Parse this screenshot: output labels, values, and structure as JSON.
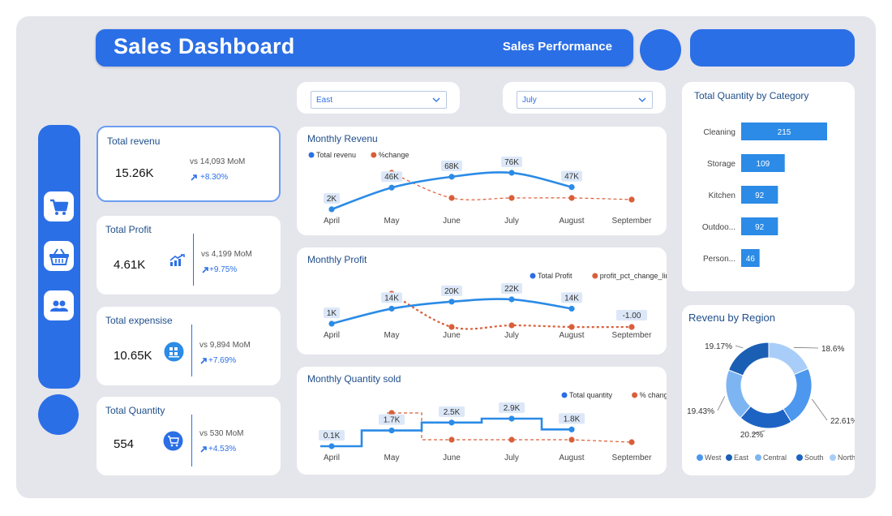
{
  "header": {
    "title": "Sales Dashboard",
    "subtitle": "Sales Performance"
  },
  "sidebar": {
    "icons": [
      "cart-icon",
      "basket-icon",
      "users-icon"
    ]
  },
  "filters": {
    "region": "East",
    "month": "July"
  },
  "kpis": {
    "revenue": {
      "label": "Total revenu",
      "value": "15.26K",
      "vs": "vs 14,093 MoM",
      "pct": "+8.30%"
    },
    "profit": {
      "label": "Total Profit",
      "value": "4.61K",
      "vs": "vs 4,199 MoM",
      "pct": "+9.75%"
    },
    "expense": {
      "label": "Total expensise",
      "value": "10.65K",
      "vs": "vs 9,894 MoM",
      "pct": "+7.69%"
    },
    "quantity": {
      "label": "Total Quantity",
      "value": "554",
      "vs": "vs 530 MoM",
      "pct": "+4.53%"
    }
  },
  "colors": {
    "primary": "#2b6fe6",
    "secondary": "#d95f3a",
    "frame": "#e5e5ec"
  },
  "chart_data": [
    {
      "type": "line",
      "title": "Monthly Revenu",
      "categories": [
        "April",
        "May",
        "June",
        "July",
        "August",
        "September"
      ],
      "series": [
        {
          "name": "Total revenu",
          "values": [
            2000,
            46000,
            68000,
            76000,
            47000,
            null
          ],
          "labels": [
            "2K",
            "46K",
            "68K",
            "76K",
            "47K",
            ""
          ]
        },
        {
          "name": "%change",
          "values": [
            null,
            20,
            -7,
            -7,
            -7,
            -8
          ]
        }
      ]
    },
    {
      "type": "line",
      "title": "Monthly Profit",
      "categories": [
        "April",
        "May",
        "June",
        "July",
        "August",
        "September"
      ],
      "series": [
        {
          "name": "Total Profit",
          "values": [
            1000,
            14000,
            20000,
            22000,
            14000,
            null
          ],
          "labels": [
            "1K",
            "14K",
            "20K",
            "22K",
            "14K",
            ""
          ]
        },
        {
          "name": "profit_pct_change_line",
          "values": [
            null,
            11,
            -1,
            -0.5,
            -1,
            -1
          ],
          "labels": [
            "",
            "",
            "",
            "",
            "",
            "-1.00"
          ]
        }
      ]
    },
    {
      "type": "line",
      "title": "Monthly Quantity sold",
      "categories": [
        "April",
        "May",
        "June",
        "July",
        "August",
        "September"
      ],
      "series": [
        {
          "name": "Total quantity",
          "values": [
            100,
            1700,
            2500,
            2900,
            1800,
            null
          ],
          "labels": [
            "0.1K",
            "1.7K",
            "2.5K",
            "2.9K",
            "1.8K",
            ""
          ]
        },
        {
          "name": "% change",
          "values": [
            null,
            20,
            -9,
            -9,
            -9,
            -10
          ]
        }
      ]
    },
    {
      "type": "bar",
      "title": "Total Quantity by Category",
      "categories": [
        "Cleaning",
        "Storage",
        "Kitchen",
        "Outdoo...",
        "Person..."
      ],
      "values": [
        215,
        109,
        92,
        92,
        46
      ]
    },
    {
      "type": "pie",
      "title": "Revenu by Region",
      "legend": [
        "West",
        "East",
        "Central",
        "South",
        "North"
      ],
      "slices": [
        {
          "name": "North",
          "value": 18.6,
          "label": "18.6%",
          "color": "#a8cdf8"
        },
        {
          "name": "West",
          "value": 22.61,
          "label": "22.61%",
          "color": "#4d97ee"
        },
        {
          "name": "South",
          "value": 20.2,
          "label": "20.2%",
          "color": "#1d63c4"
        },
        {
          "name": "Central",
          "value": 19.43,
          "label": "19.43%",
          "color": "#7db5f3"
        },
        {
          "name": "East",
          "value": 19.17,
          "label": "19.17%",
          "color": "#1a5fb4"
        }
      ]
    }
  ]
}
